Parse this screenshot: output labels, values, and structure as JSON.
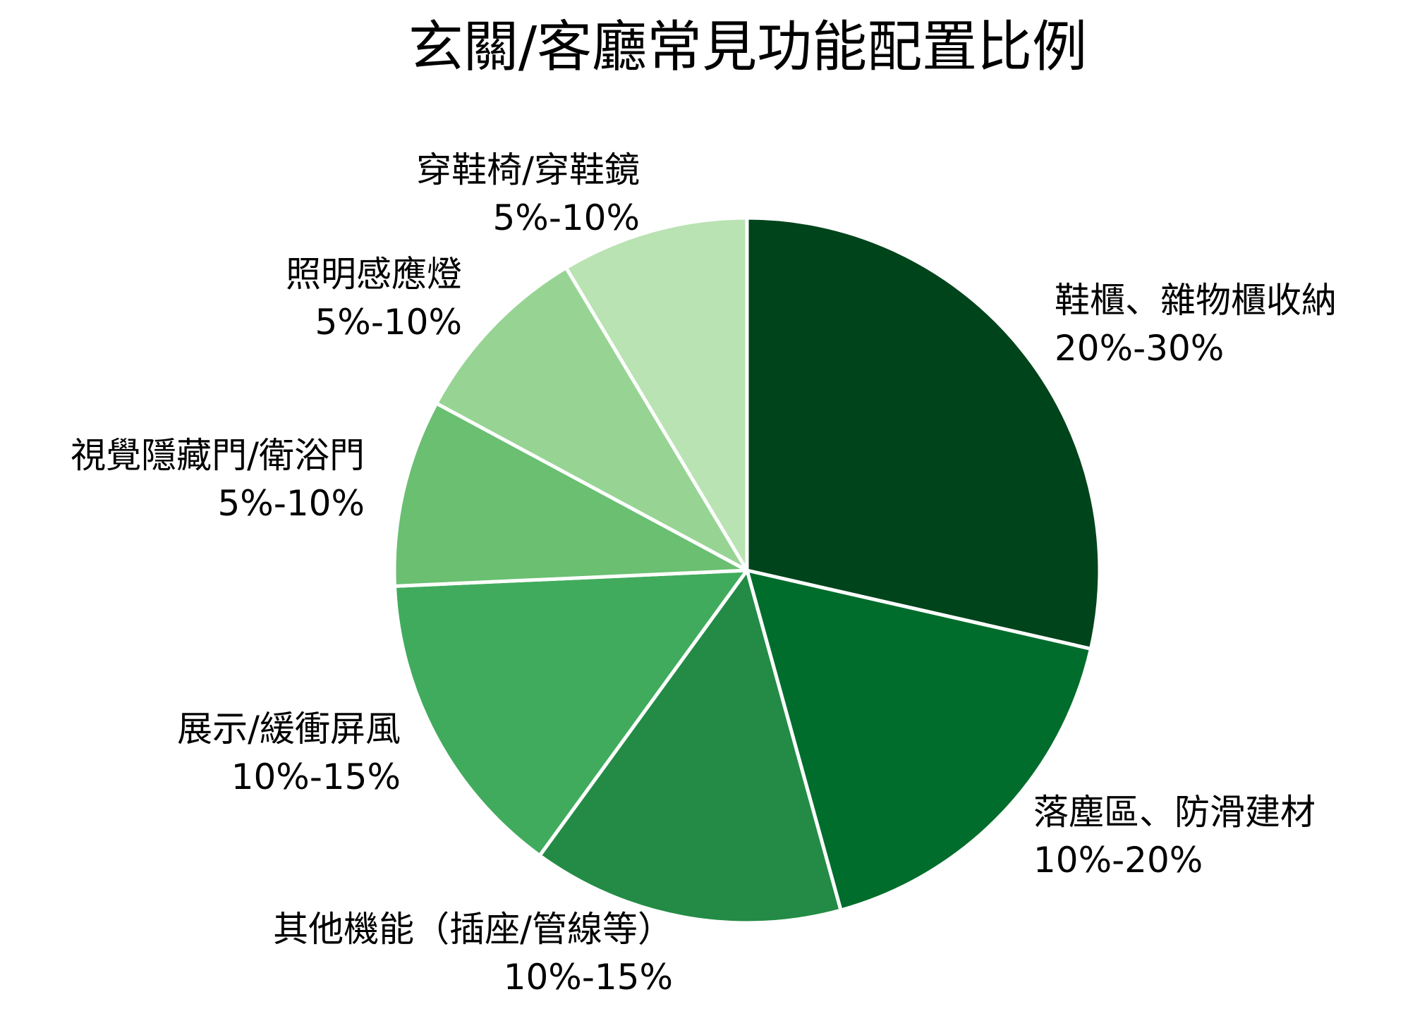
{
  "chart_data": {
    "type": "pie",
    "title": "玄關/客廳常見功能配置比例",
    "start_angle": 90,
    "direction": "clockwise",
    "categories": [
      "鞋櫃、雜物櫃收納",
      "落塵區、防滑建材",
      "其他機能（插座/管線等）",
      "展示/緩衝屏風",
      "視覺隱藏門/衛浴門",
      "照明感應燈",
      "穿鞋椅/穿鞋鏡"
    ],
    "range_labels": [
      "20%-30%",
      "10%-20%",
      "10%-15%",
      "10%-15%",
      "5%-10%",
      "5%-10%",
      "5%-10%"
    ],
    "values": [
      25,
      15,
      12.5,
      12.5,
      7.5,
      7.5,
      7.5
    ],
    "shares_pct": [
      28.6,
      17.1,
      14.3,
      14.3,
      8.6,
      8.6,
      8.6
    ],
    "colors": [
      "#00441b",
      "#006d2c",
      "#238b45",
      "#41ab5d",
      "#6abf71",
      "#97d494",
      "#b9e3b2"
    ],
    "legend": "none",
    "wedge_edge_color": "#ffffff"
  },
  "labels": [
    {
      "name": "鞋櫃、雜物櫃收納",
      "range": "20%-30%"
    },
    {
      "name": "落塵區、防滑建材",
      "range": "10%-20%"
    },
    {
      "name": "其他機能（插座/管線等）",
      "range": "10%-15%"
    },
    {
      "name": "展示/緩衝屏風",
      "range": "10%-15%"
    },
    {
      "name": "視覺隱藏門/衛浴門",
      "range": "5%-10%"
    },
    {
      "name": "照明感應燈",
      "range": "5%-10%"
    },
    {
      "name": "穿鞋椅/穿鞋鏡",
      "range": "5%-10%"
    }
  ]
}
